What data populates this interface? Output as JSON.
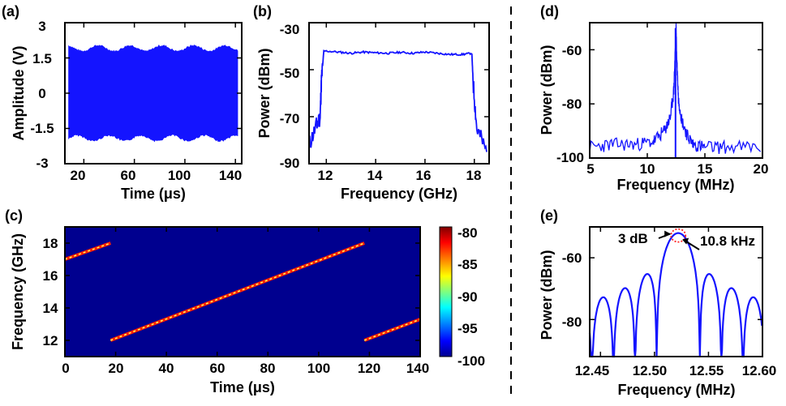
{
  "figure": {
    "accent_color": "#1414ff",
    "panels": [
      {
        "label": "(a)",
        "xlabel": "Time (μs)",
        "ylabel": "Amplitude (V)",
        "xticks": [
          "20",
          "60",
          "100",
          "140"
        ],
        "yticks": [
          "3",
          "1.5",
          "0",
          "-1.5",
          "-3"
        ]
      },
      {
        "label": "(b)",
        "xlabel": "Frequency (GHz)",
        "ylabel": "Power (dBm)",
        "xticks": [
          "12",
          "14",
          "16",
          "18"
        ],
        "yticks": [
          "-30",
          "-50",
          "-70",
          "-90"
        ]
      },
      {
        "label": "(c)",
        "xlabel": "Time (μs)",
        "ylabel": "Frequency (GHz)",
        "xticks": [
          "0",
          "20",
          "40",
          "60",
          "80",
          "100",
          "120",
          "140"
        ],
        "yticks": [
          "18",
          "16",
          "14",
          "12"
        ],
        "colorbar_ticks": [
          "-80",
          "-85",
          "-90",
          "-95",
          "-100"
        ]
      },
      {
        "label": "(d)",
        "xlabel": "Frequency (MHz)",
        "ylabel": "Power (dBm)",
        "xticks": [
          "5",
          "10",
          "15",
          "20"
        ],
        "yticks": [
          "-60",
          "-80",
          "-100"
        ]
      },
      {
        "label": "(e)",
        "xlabel": "Frequency (MHz)",
        "ylabel": "Power (dBm)",
        "xticks": [
          "12.45",
          "12.50",
          "12.55",
          "12.60"
        ],
        "yticks": [
          "-60",
          "-80"
        ],
        "annotations": [
          "3 dB",
          "10.8 kHz"
        ]
      }
    ]
  },
  "chart_data": [
    {
      "type": "line",
      "panel": "(a)",
      "xlabel": "Time (μs)",
      "ylabel": "Amplitude (V)",
      "xlim": [
        5,
        145
      ],
      "ylim": [
        -3,
        3
      ],
      "xticks": [
        20,
        60,
        100,
        140
      ],
      "yticks": [
        3,
        1.5,
        0,
        -1.5,
        -3
      ],
      "description_values": {
        "envelope_upper": 1.9,
        "envelope_lower": -1.9,
        "x_start": 8,
        "x_end": 142
      },
      "series": [
        {
          "values": [
            [
              8,
              1.9
            ],
            [
              142,
              1.9
            ],
            [
              142,
              -1.9
            ],
            [
              8,
              -1.9
            ]
          ]
        }
      ]
    },
    {
      "type": "line",
      "panel": "(b)",
      "xlabel": "Frequency (GHz)",
      "ylabel": "Power (dBm)",
      "xlim": [
        11.3,
        18.6
      ],
      "ylim": [
        -90,
        -30
      ],
      "xticks": [
        12,
        14,
        16,
        18
      ],
      "yticks": [
        -30,
        -50,
        -70,
        -90
      ],
      "series": [
        {
          "x": [
            11.3,
            11.6,
            11.75,
            11.8,
            11.9,
            12.5,
            13,
            13.5,
            14,
            14.5,
            15,
            15.5,
            16,
            16.5,
            17,
            17.5,
            17.9,
            17.95,
            18.1,
            18.5
          ],
          "y": [
            -82,
            -74,
            -70,
            -55,
            -42,
            -42.5,
            -43,
            -42.5,
            -42.8,
            -43,
            -42.6,
            -43,
            -42.5,
            -43,
            -43.5,
            -43.5,
            -43,
            -55,
            -75,
            -85
          ]
        }
      ]
    },
    {
      "type": "heatmap",
      "panel": "(c)",
      "xlabel": "Time (μs)",
      "ylabel": "Frequency (GHz)",
      "xlim": [
        0,
        140
      ],
      "ylim": [
        11,
        19
      ],
      "xticks": [
        0,
        20,
        40,
        60,
        80,
        100,
        120,
        140
      ],
      "yticks": [
        18,
        16,
        14,
        12
      ],
      "colorbar": {
        "range": [
          -100,
          -80
        ],
        "ticks": [
          -80,
          -85,
          -90,
          -95,
          -100
        ]
      },
      "background_value": -100,
      "chirp_segments": [
        {
          "t": [
            0,
            18
          ],
          "f": [
            17.0,
            18.0
          ]
        },
        {
          "t": [
            18,
            118
          ],
          "f": [
            12.0,
            18.0
          ]
        },
        {
          "t": [
            118,
            140
          ],
          "f": [
            12.0,
            13.3
          ]
        }
      ]
    },
    {
      "type": "line",
      "panel": "(d)",
      "xlabel": "Frequency (MHz)",
      "ylabel": "Power (dBm)",
      "xlim": [
        5,
        20
      ],
      "ylim": [
        -100,
        -50
      ],
      "xticks": [
        5,
        10,
        15,
        20
      ],
      "yticks": [
        -60,
        -80,
        -100
      ],
      "series": [
        {
          "x": [
            5,
            7,
            9,
            10.5,
            11.5,
            12,
            12.3,
            12.5,
            12.55,
            12.7,
            13,
            13.5,
            14,
            15,
            17,
            20
          ],
          "y": [
            -96,
            -95,
            -95,
            -94,
            -90,
            -85,
            -75,
            -52,
            -62,
            -78,
            -86,
            -92,
            -95,
            -96,
            -96,
            -96
          ]
        }
      ]
    },
    {
      "type": "line",
      "panel": "(e)",
      "xlabel": "Frequency (MHz)",
      "ylabel": "Power (dBm)",
      "xlim": [
        12.44,
        12.6
      ],
      "ylim": [
        -92,
        -50
      ],
      "xticks": [
        12.45,
        12.5,
        12.55,
        12.6
      ],
      "yticks": [
        -60,
        -80
      ],
      "peak": {
        "x": 12.522,
        "y": -52
      },
      "annotations": [
        {
          "text": "3 dB"
        },
        {
          "text": "10.8 kHz"
        }
      ]
    }
  ]
}
